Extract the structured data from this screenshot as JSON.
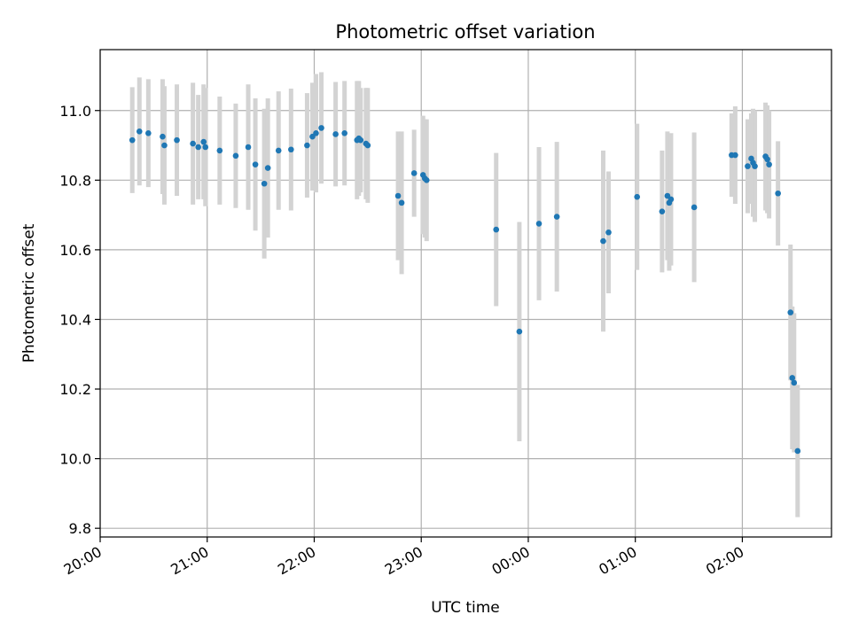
{
  "chart_data": {
    "type": "scatter",
    "title": "Photometric offset variation",
    "xlabel": "UTC time",
    "ylabel": "Photometric offset",
    "x_ticks": [
      "20:00",
      "21:00",
      "22:00",
      "23:00",
      "00:00",
      "01:00",
      "02:00"
    ],
    "y_ticks": [
      "9.8",
      "10.0",
      "10.2",
      "10.4",
      "10.6",
      "10.8",
      "11.0"
    ],
    "xlim_hours": [
      20.0,
      26.833
    ],
    "ylim": [
      9.775,
      11.175
    ],
    "grid": true,
    "colors": {
      "point": "#1f77b4",
      "errorbar": "#d3d3d3",
      "grid": "#b0b0b0",
      "axes": "#000000"
    },
    "series": [
      {
        "x": [
          "20:18",
          "20:22",
          "20:27",
          "20:35",
          "20:36",
          "20:43",
          "20:52",
          "20:55",
          "20:58",
          "20:59",
          "21:07",
          "21:16",
          "21:23",
          "21:27",
          "21:32",
          "21:34",
          "21:40",
          "21:47",
          "21:56",
          "21:59",
          "22:01",
          "22:04",
          "22:12",
          "22:17",
          "22:24",
          "22:25",
          "22:26",
          "22:29",
          "22:30",
          "22:47",
          "22:49",
          "22:56",
          "23:01",
          "23:02",
          "23:03",
          "23:42",
          "23:55",
          "00:06",
          "00:16",
          "00:42",
          "00:45",
          "01:01",
          "01:15",
          "01:18",
          "01:19",
          "01:20",
          "01:33",
          "01:54",
          "01:56",
          "02:03",
          "02:05",
          "02:06",
          "02:07",
          "02:13",
          "02:14",
          "02:15",
          "02:20",
          "02:27",
          "02:28",
          "02:29",
          "02:31"
        ],
        "y": [
          10.915,
          10.94,
          10.935,
          10.925,
          10.9,
          10.915,
          10.905,
          10.895,
          10.91,
          10.895,
          10.885,
          10.87,
          10.895,
          10.845,
          10.79,
          10.835,
          10.885,
          10.888,
          10.9,
          10.925,
          10.935,
          10.95,
          10.932,
          10.935,
          10.915,
          10.92,
          10.915,
          10.905,
          10.9,
          10.755,
          10.735,
          10.82,
          10.815,
          10.805,
          10.8,
          10.658,
          10.365,
          10.675,
          10.695,
          10.625,
          10.65,
          10.752,
          10.71,
          10.755,
          10.735,
          10.745,
          10.722,
          10.872,
          10.872,
          10.84,
          10.862,
          10.85,
          10.84,
          10.868,
          10.86,
          10.845,
          10.762,
          10.42,
          10.232,
          10.218,
          10.022
        ],
        "yerr": [
          0.152,
          0.155,
          0.155,
          0.165,
          0.17,
          0.16,
          0.175,
          0.15,
          0.165,
          0.17,
          0.155,
          0.15,
          0.18,
          0.19,
          0.215,
          0.2,
          0.17,
          0.175,
          0.15,
          0.155,
          0.17,
          0.16,
          0.15,
          0.15,
          0.17,
          0.165,
          0.15,
          0.16,
          0.165,
          0.185,
          0.205,
          0.125,
          0.17,
          0.17,
          0.175,
          0.22,
          0.315,
          0.22,
          0.215,
          0.26,
          0.175,
          0.21,
          0.175,
          0.185,
          0.195,
          0.19,
          0.215,
          0.12,
          0.14,
          0.135,
          0.13,
          0.155,
          0.16,
          0.155,
          0.155,
          0.155,
          0.15,
          0.195,
          0.205,
          0.2,
          0.19
        ]
      }
    ]
  }
}
